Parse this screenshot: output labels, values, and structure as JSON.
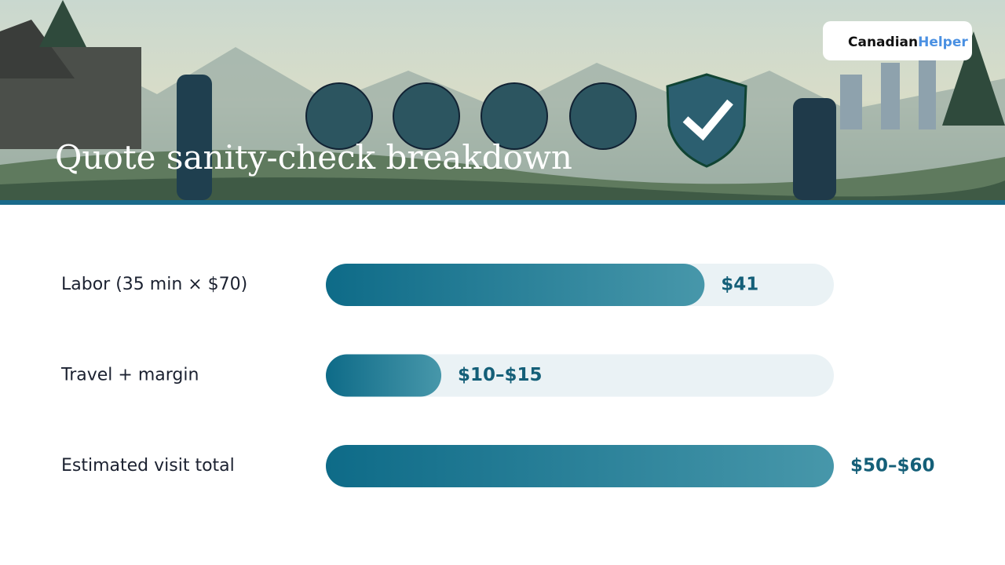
{
  "brand": {
    "name_1": "Canadian",
    "name_2": "Helper"
  },
  "chart_data": {
    "type": "bar",
    "orientation": "horizontal",
    "title": "Quote sanity-check breakdown",
    "categories": [
      "Labor (35 min × $70)",
      "Travel + margin",
      "Estimated visit total"
    ],
    "values": [
      41,
      12.5,
      55
    ],
    "value_labels": [
      "$41",
      "$10–$15",
      "$50–$60"
    ],
    "xlim": [
      0,
      55
    ],
    "color": "#0f6f8c"
  }
}
